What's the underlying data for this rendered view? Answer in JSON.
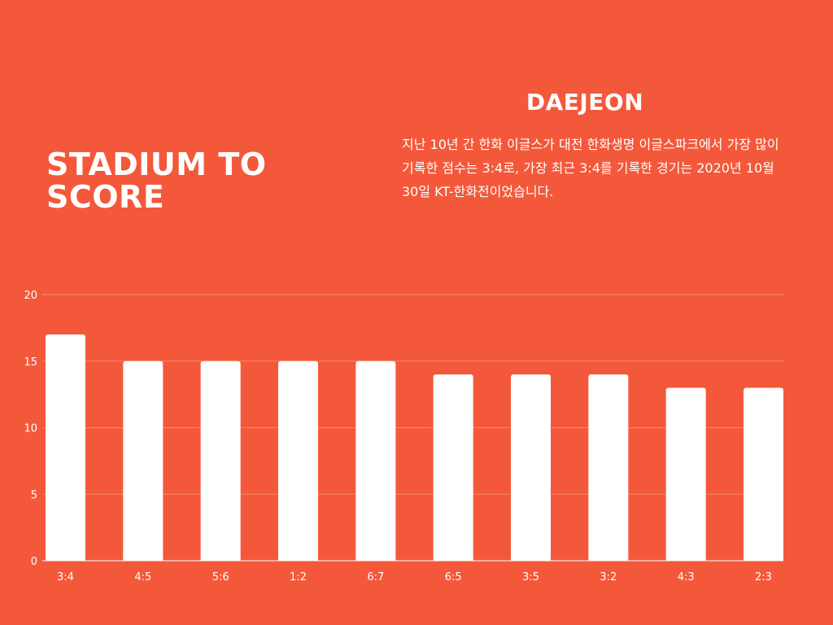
{
  "header": {
    "title": "STADIUM TO SCORE",
    "city": "DAEJEON",
    "description": "지난 10년 간 한화 이글스가 대전 한화생명 이글스파크에서 가장 많이 기록한 점수는 3:4로, 가장 최근 3:4를 기록한 경기는 2020년 10월 30일 KT-한화전이었습니다."
  },
  "colors": {
    "background": "#F4583A",
    "bar": "#FFFFFF",
    "gridline": "#F7876F",
    "text": "#FFFFFF"
  },
  "chart_data": {
    "type": "bar",
    "title": "",
    "xlabel": "",
    "ylabel": "",
    "categories": [
      "3:4",
      "4:5",
      "5:6",
      "1:2",
      "6:7",
      "6:5",
      "3:5",
      "3:2",
      "4:3",
      "2:3"
    ],
    "values": [
      17,
      15,
      15,
      15,
      15,
      14,
      14,
      14,
      13,
      13
    ],
    "ylim": [
      0,
      20
    ],
    "yticks": [
      0,
      5,
      10,
      15,
      20
    ],
    "grid": true,
    "legend": "none"
  }
}
